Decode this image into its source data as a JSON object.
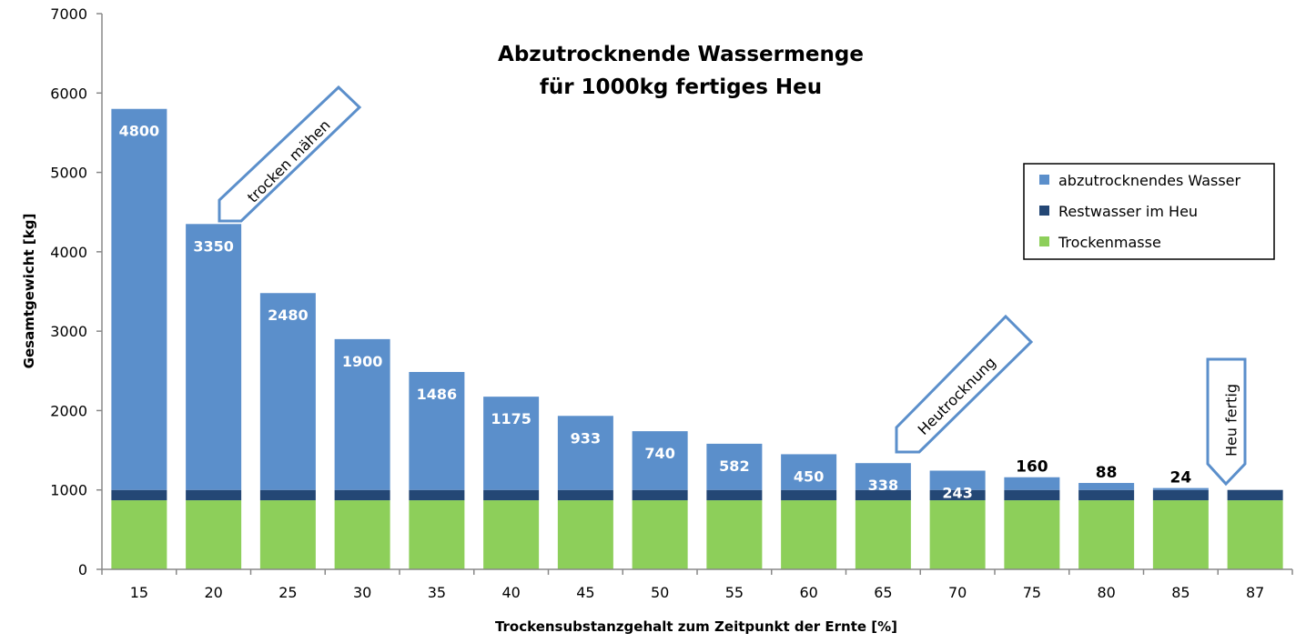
{
  "chart_data": {
    "type": "bar",
    "stacked": true,
    "title": [
      "Abzutrocknende Wassermenge",
      "für 1000kg  fertiges Heu"
    ],
    "xlabel": "Trockensubstanzgehalt zum Zeitpunkt der Ernte [%]",
    "ylabel": "Gesamtgewicht [kg]",
    "ylim": [
      0,
      7000
    ],
    "yticks": [
      0,
      1000,
      2000,
      3000,
      4000,
      5000,
      6000,
      7000
    ],
    "categories": [
      "15",
      "20",
      "25",
      "30",
      "35",
      "40",
      "45",
      "50",
      "55",
      "60",
      "65",
      "70",
      "75",
      "80",
      "85",
      "87"
    ],
    "series": [
      {
        "name": "Trockenmasse",
        "color": "#8dcf5a",
        "values": [
          870,
          870,
          870,
          870,
          870,
          870,
          870,
          870,
          870,
          870,
          870,
          870,
          870,
          870,
          870,
          870
        ]
      },
      {
        "name": "Restwasser im Heu",
        "color": "#244775",
        "values": [
          130,
          130,
          130,
          130,
          130,
          130,
          130,
          130,
          130,
          130,
          130,
          130,
          130,
          130,
          130,
          130
        ]
      },
      {
        "name": "abzutrocknendes Wasser",
        "color": "#5b8fcb",
        "values": [
          4800,
          3350,
          2480,
          1900,
          1486,
          1175,
          933,
          740,
          582,
          450,
          338,
          243,
          160,
          88,
          24,
          0
        ]
      }
    ],
    "data_labels": [
      "4800",
      "3350",
      "2480",
      "1900",
      "1486",
      "1175",
      "933",
      "740",
      "582",
      "450",
      "338",
      "243",
      "160",
      "88",
      "24",
      ""
    ],
    "legend": {
      "placement": "top-right",
      "entries": [
        "abzutrocknendes Wasser",
        "Restwasser im Heu",
        "Trockenmasse"
      ]
    },
    "grid": false,
    "annotations": [
      {
        "text": "trocken mähen",
        "category": "20"
      },
      {
        "text": "Heutrocknung",
        "category": "65"
      },
      {
        "text": "Heu fertig",
        "category": "87"
      }
    ],
    "annotation_color": "#5b8fcb"
  }
}
